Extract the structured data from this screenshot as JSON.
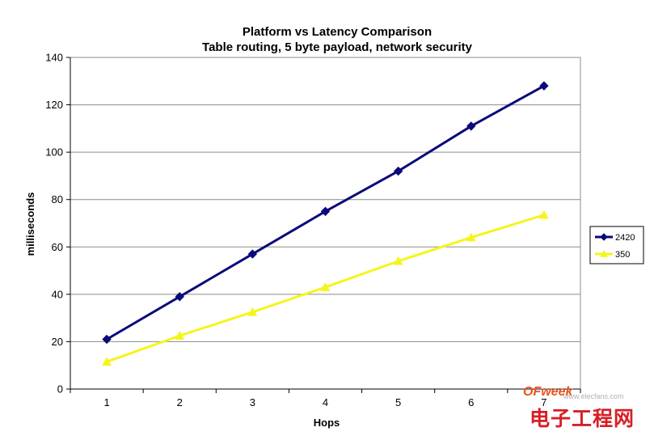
{
  "chart_data": {
    "type": "line",
    "title": "Platform vs Latency Comparison",
    "subtitle": "Table routing, 5 byte payload, network security",
    "xlabel": "Hops",
    "ylabel": "milliseconds",
    "categories": [
      "1",
      "2",
      "3",
      "4",
      "5",
      "6",
      "7"
    ],
    "ylim": [
      0,
      140
    ],
    "yticks": [
      0,
      20,
      40,
      60,
      80,
      100,
      120,
      140
    ],
    "grid": true,
    "legend_position": "right",
    "series": [
      {
        "name": "2420",
        "values": [
          21,
          39,
          57,
          75,
          92,
          111,
          128
        ],
        "color": "#0a0a7a",
        "marker": "diamond"
      },
      {
        "name": "350",
        "values": [
          11.5,
          22.5,
          32.5,
          43,
          54,
          64,
          73.5
        ],
        "color": "#f5f51a",
        "marker": "triangle"
      }
    ]
  },
  "watermark": {
    "brand": "OFweek",
    "url": "www.elecfans.com",
    "text": "电子工程网",
    "color": "#d61f26"
  }
}
